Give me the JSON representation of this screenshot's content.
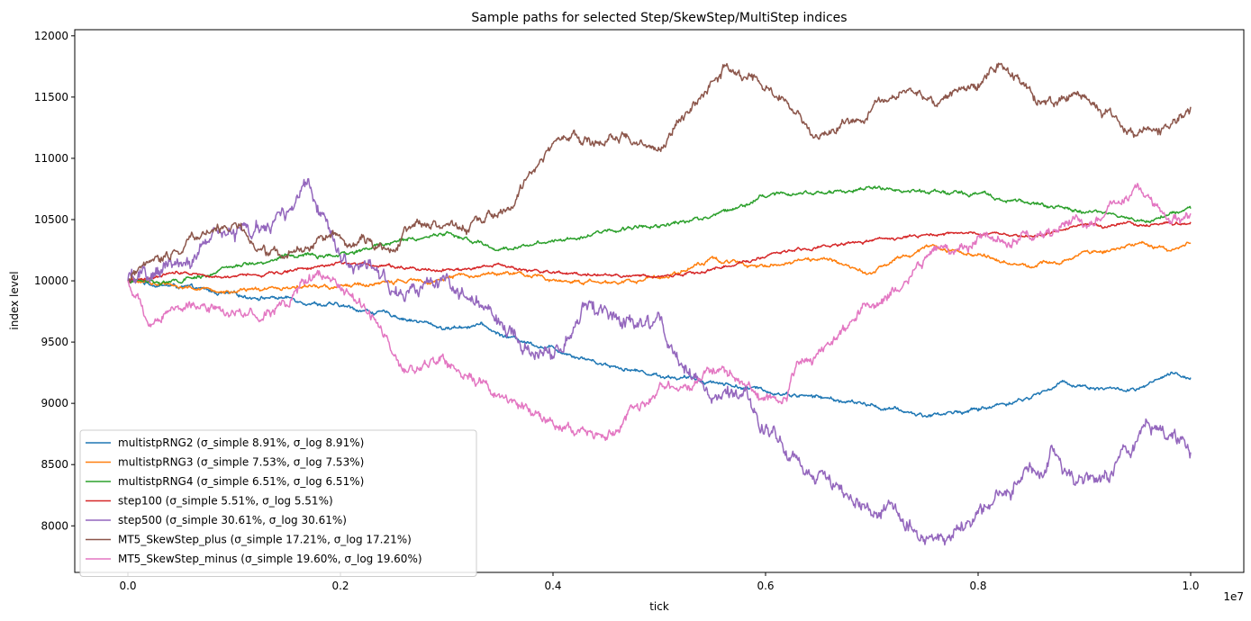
{
  "chart_data": {
    "type": "line",
    "title": "Sample paths for selected Step/SkewStep/MultiStep indices",
    "xlabel": "tick",
    "ylabel": "index level",
    "x_offset_label": "1e7",
    "xlim": [
      -0.05,
      1.05
    ],
    "ylim": [
      7620,
      12050
    ],
    "x_ticks": [
      0.0,
      0.2,
      0.4,
      0.6,
      0.8,
      1.0
    ],
    "x_tick_labels": [
      "0.0",
      "0.2",
      "0.4",
      "0.6",
      "0.8",
      "1.0"
    ],
    "y_ticks": [
      8000,
      8500,
      9000,
      9500,
      10000,
      10500,
      11000,
      11500,
      12000
    ],
    "y_tick_labels": [
      "8000",
      "8500",
      "9000",
      "9500",
      "10000",
      "10500",
      "11000",
      "11500",
      "12000"
    ],
    "grid": false,
    "legend_position": "lower-left",
    "series": [
      {
        "name": "multistpRNG2 (σ_simple 8.91%, σ_log 8.91%)",
        "color": "#1f77b4",
        "noise": 18,
        "x": [
          0.0,
          0.05,
          0.1,
          0.15,
          0.2,
          0.25,
          0.3,
          0.33,
          0.35,
          0.4,
          0.45,
          0.5,
          0.55,
          0.6,
          0.65,
          0.7,
          0.75,
          0.8,
          0.85,
          0.88,
          0.9,
          0.95,
          0.98,
          1.0
        ],
        "y": [
          10000,
          9950,
          9880,
          9860,
          9790,
          9720,
          9610,
          9650,
          9560,
          9450,
          9320,
          9230,
          9180,
          9100,
          9050,
          8980,
          8900,
          8950,
          9050,
          9170,
          9140,
          9100,
          9230,
          9210
        ]
      },
      {
        "name": "multistpRNG3 (σ_simple 7.53%, σ_log 7.53%)",
        "color": "#ff7f0e",
        "noise": 18,
        "x": [
          0.0,
          0.05,
          0.1,
          0.15,
          0.2,
          0.25,
          0.3,
          0.35,
          0.4,
          0.45,
          0.5,
          0.55,
          0.6,
          0.65,
          0.7,
          0.75,
          0.8,
          0.85,
          0.9,
          0.95,
          0.98,
          1.0
        ],
        "y": [
          10000,
          9960,
          9900,
          9950,
          9950,
          9990,
          10020,
          10070,
          10010,
          9980,
          10030,
          10170,
          10130,
          10180,
          10080,
          10280,
          10210,
          10120,
          10220,
          10300,
          10260,
          10310
        ]
      },
      {
        "name": "multistpRNG4 (σ_simple 6.51%, σ_log 6.51%)",
        "color": "#2ca02c",
        "noise": 18,
        "x": [
          0.0,
          0.05,
          0.1,
          0.15,
          0.2,
          0.25,
          0.3,
          0.35,
          0.4,
          0.45,
          0.5,
          0.55,
          0.6,
          0.65,
          0.7,
          0.75,
          0.8,
          0.85,
          0.9,
          0.95,
          0.98,
          1.0
        ],
        "y": [
          10000,
          9990,
          10110,
          10200,
          10200,
          10320,
          10390,
          10250,
          10340,
          10400,
          10460,
          10530,
          10700,
          10720,
          10760,
          10720,
          10720,
          10640,
          10570,
          10500,
          10530,
          10590
        ]
      },
      {
        "name": "step100 (σ_simple 5.51%, σ_log 5.51%)",
        "color": "#d62728",
        "noise": 14,
        "x": [
          0.0,
          0.05,
          0.1,
          0.15,
          0.2,
          0.25,
          0.3,
          0.35,
          0.4,
          0.45,
          0.5,
          0.55,
          0.6,
          0.65,
          0.7,
          0.75,
          0.8,
          0.85,
          0.9,
          0.95,
          0.98,
          1.0
        ],
        "y": [
          10000,
          10080,
          10030,
          10080,
          10150,
          10120,
          10090,
          10120,
          10060,
          10050,
          10030,
          10090,
          10200,
          10280,
          10320,
          10370,
          10380,
          10360,
          10440,
          10460,
          10470,
          10480
        ]
      },
      {
        "name": "step500 (σ_simple 30.61%, σ_log 30.61%)",
        "color": "#9467bd",
        "noise": 70,
        "x": [
          0.0,
          0.03,
          0.06,
          0.09,
          0.12,
          0.15,
          0.17,
          0.2,
          0.23,
          0.26,
          0.3,
          0.33,
          0.36,
          0.38,
          0.4,
          0.43,
          0.46,
          0.5,
          0.52,
          0.55,
          0.58,
          0.6,
          0.63,
          0.66,
          0.7,
          0.73,
          0.77,
          0.8,
          0.84,
          0.87,
          0.9,
          0.93,
          0.96,
          1.0
        ],
        "y": [
          10000,
          10050,
          10200,
          10380,
          10400,
          10500,
          10850,
          10250,
          10050,
          9850,
          9950,
          9800,
          9600,
          9450,
          9400,
          9750,
          9700,
          9600,
          9350,
          9050,
          9000,
          8800,
          8500,
          8300,
          8100,
          8050,
          7800,
          8150,
          8400,
          8600,
          8350,
          8500,
          8850,
          8600
        ]
      },
      {
        "name": "MT5_SkewStep_plus (σ_simple 17.21%, σ_log 17.21%)",
        "color": "#8c564b",
        "noise": 45,
        "x": [
          0.0,
          0.03,
          0.07,
          0.1,
          0.13,
          0.17,
          0.2,
          0.25,
          0.28,
          0.32,
          0.36,
          0.38,
          0.41,
          0.43,
          0.47,
          0.5,
          0.52,
          0.54,
          0.56,
          0.58,
          0.6,
          0.63,
          0.65,
          0.68,
          0.7,
          0.73,
          0.76,
          0.8,
          0.82,
          0.84,
          0.86,
          0.88,
          0.9,
          0.93,
          0.95,
          0.97,
          1.0
        ],
        "y": [
          10000,
          10180,
          10400,
          10450,
          10200,
          10300,
          10350,
          10280,
          10500,
          10450,
          10580,
          10900,
          11200,
          11150,
          11150,
          11050,
          11350,
          11500,
          11750,
          11600,
          11600,
          11350,
          11150,
          11300,
          11400,
          11550,
          11500,
          11600,
          11800,
          11650,
          11450,
          11500,
          11550,
          11300,
          11200,
          11250,
          11420
        ]
      },
      {
        "name": "MT5_SkewStep_minus (σ_simple 19.60%, σ_log 19.60%)",
        "color": "#e377c2",
        "noise": 50,
        "x": [
          0.0,
          0.02,
          0.05,
          0.1,
          0.15,
          0.17,
          0.2,
          0.23,
          0.26,
          0.3,
          0.33,
          0.36,
          0.39,
          0.42,
          0.44,
          0.47,
          0.5,
          0.53,
          0.56,
          0.6,
          0.62,
          0.63,
          0.65,
          0.67,
          0.7,
          0.73,
          0.76,
          0.8,
          0.85,
          0.9,
          0.93,
          0.95,
          0.98,
          1.0
        ],
        "y": [
          10000,
          9600,
          9850,
          9720,
          9800,
          10050,
          9900,
          9700,
          9250,
          9350,
          9150,
          9000,
          8900,
          8750,
          8700,
          8900,
          9100,
          9150,
          9300,
          9000,
          9100,
          9350,
          9400,
          9550,
          9800,
          10000,
          10250,
          10300,
          10400,
          10450,
          10600,
          10750,
          10500,
          10550
        ]
      }
    ]
  }
}
